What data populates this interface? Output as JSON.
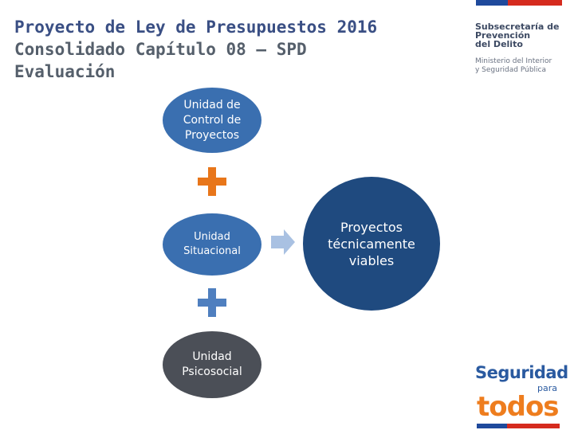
{
  "title": {
    "line1": "Proyecto de Ley de Presupuestos 2016",
    "line2": "Consolidado Capítulo 08 – SPD",
    "line3": "Evaluación"
  },
  "org": {
    "name_line1": "Subsecretaría de",
    "name_line2": "Prevención",
    "name_line3": "del Delito",
    "ministry_line1": "Ministerio del Interior",
    "ministry_line2": "y Seguridad Pública"
  },
  "diagram": {
    "units": [
      {
        "line1": "Unidad de",
        "line2": "Control de",
        "line3": "Proyectos"
      },
      {
        "line1": "Unidad",
        "line2": "Situacional"
      },
      {
        "line1": "Unidad",
        "line2": "Psicosocial"
      }
    ],
    "result": {
      "line1": "Proyectos",
      "line2": "técnicamente",
      "line3": "viables"
    }
  },
  "brand": {
    "word1": "Seguridad",
    "word2": "para",
    "word3": "todos"
  },
  "colors": {
    "title_primary": "#3a4f84",
    "title_secondary": "#555f6b",
    "unit_blue": "#3a6fb0",
    "unit_gray": "#4b4f57",
    "result_navy": "#1f4a7f",
    "plus_orange": "#e8761a",
    "plus_blue": "#4f7fbf",
    "arrow_lightblue": "#a9c1e2",
    "brand_blue": "#2a5aa0",
    "brand_orange": "#ee7d1e"
  }
}
